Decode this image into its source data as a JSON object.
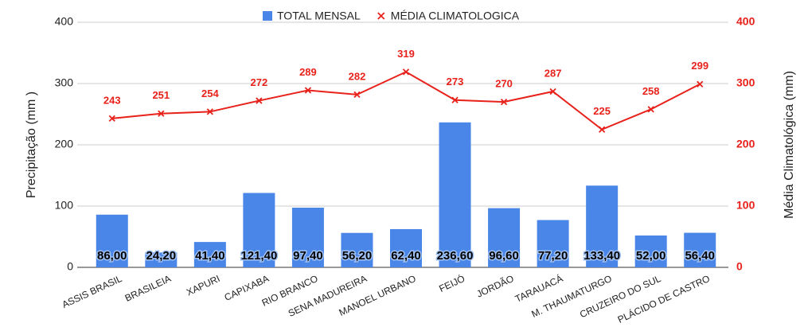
{
  "chart_data": {
    "type": "bar",
    "legend_position": "top",
    "categories": [
      "ASSIS BRASIL",
      "BRASILEIA",
      "XAPURI",
      "CAPIXABA",
      "RIO BRANCO",
      "SENA MADUREIRA",
      "MANOEL URBANO",
      "FEIJÓ",
      "JORDÃO",
      "TARAUACÁ",
      "M. THAUMATURGO",
      "CRUZEIRO DO SUL",
      "PLÁCIDO DE CASTRO"
    ],
    "series": [
      {
        "name": "TOTAL MENSAL",
        "type": "bar",
        "color": "#4a86e8",
        "values": [
          86,
          24.2,
          41.4,
          121.4,
          97.4,
          56.2,
          62.4,
          236.6,
          96.6,
          77.2,
          133.4,
          52,
          56.4
        ],
        "value_labels": [
          "86,00",
          "24,20",
          "41,40",
          "121,40",
          "97,40",
          "56,20",
          "62,40",
          "236,60",
          "96,60",
          "77,20",
          "133,40",
          "52,00",
          "56,40"
        ]
      },
      {
        "name": "MÉDIA CLIMATOLOGICA",
        "type": "line",
        "axis": "y2",
        "color": "#e8211b",
        "values": [
          243,
          251,
          254,
          272,
          289,
          282,
          319,
          273,
          270,
          287,
          225,
          258,
          299
        ]
      }
    ],
    "ylabel": "Precipitação (mm )",
    "y2label": "Média Climatológica (mm)",
    "ylim": [
      0,
      400
    ],
    "yticks": [
      0,
      100,
      200,
      300,
      400
    ],
    "y2lim": [
      0,
      400
    ],
    "y2ticks": [
      0,
      100,
      200,
      300,
      400
    ],
    "grid": true
  }
}
